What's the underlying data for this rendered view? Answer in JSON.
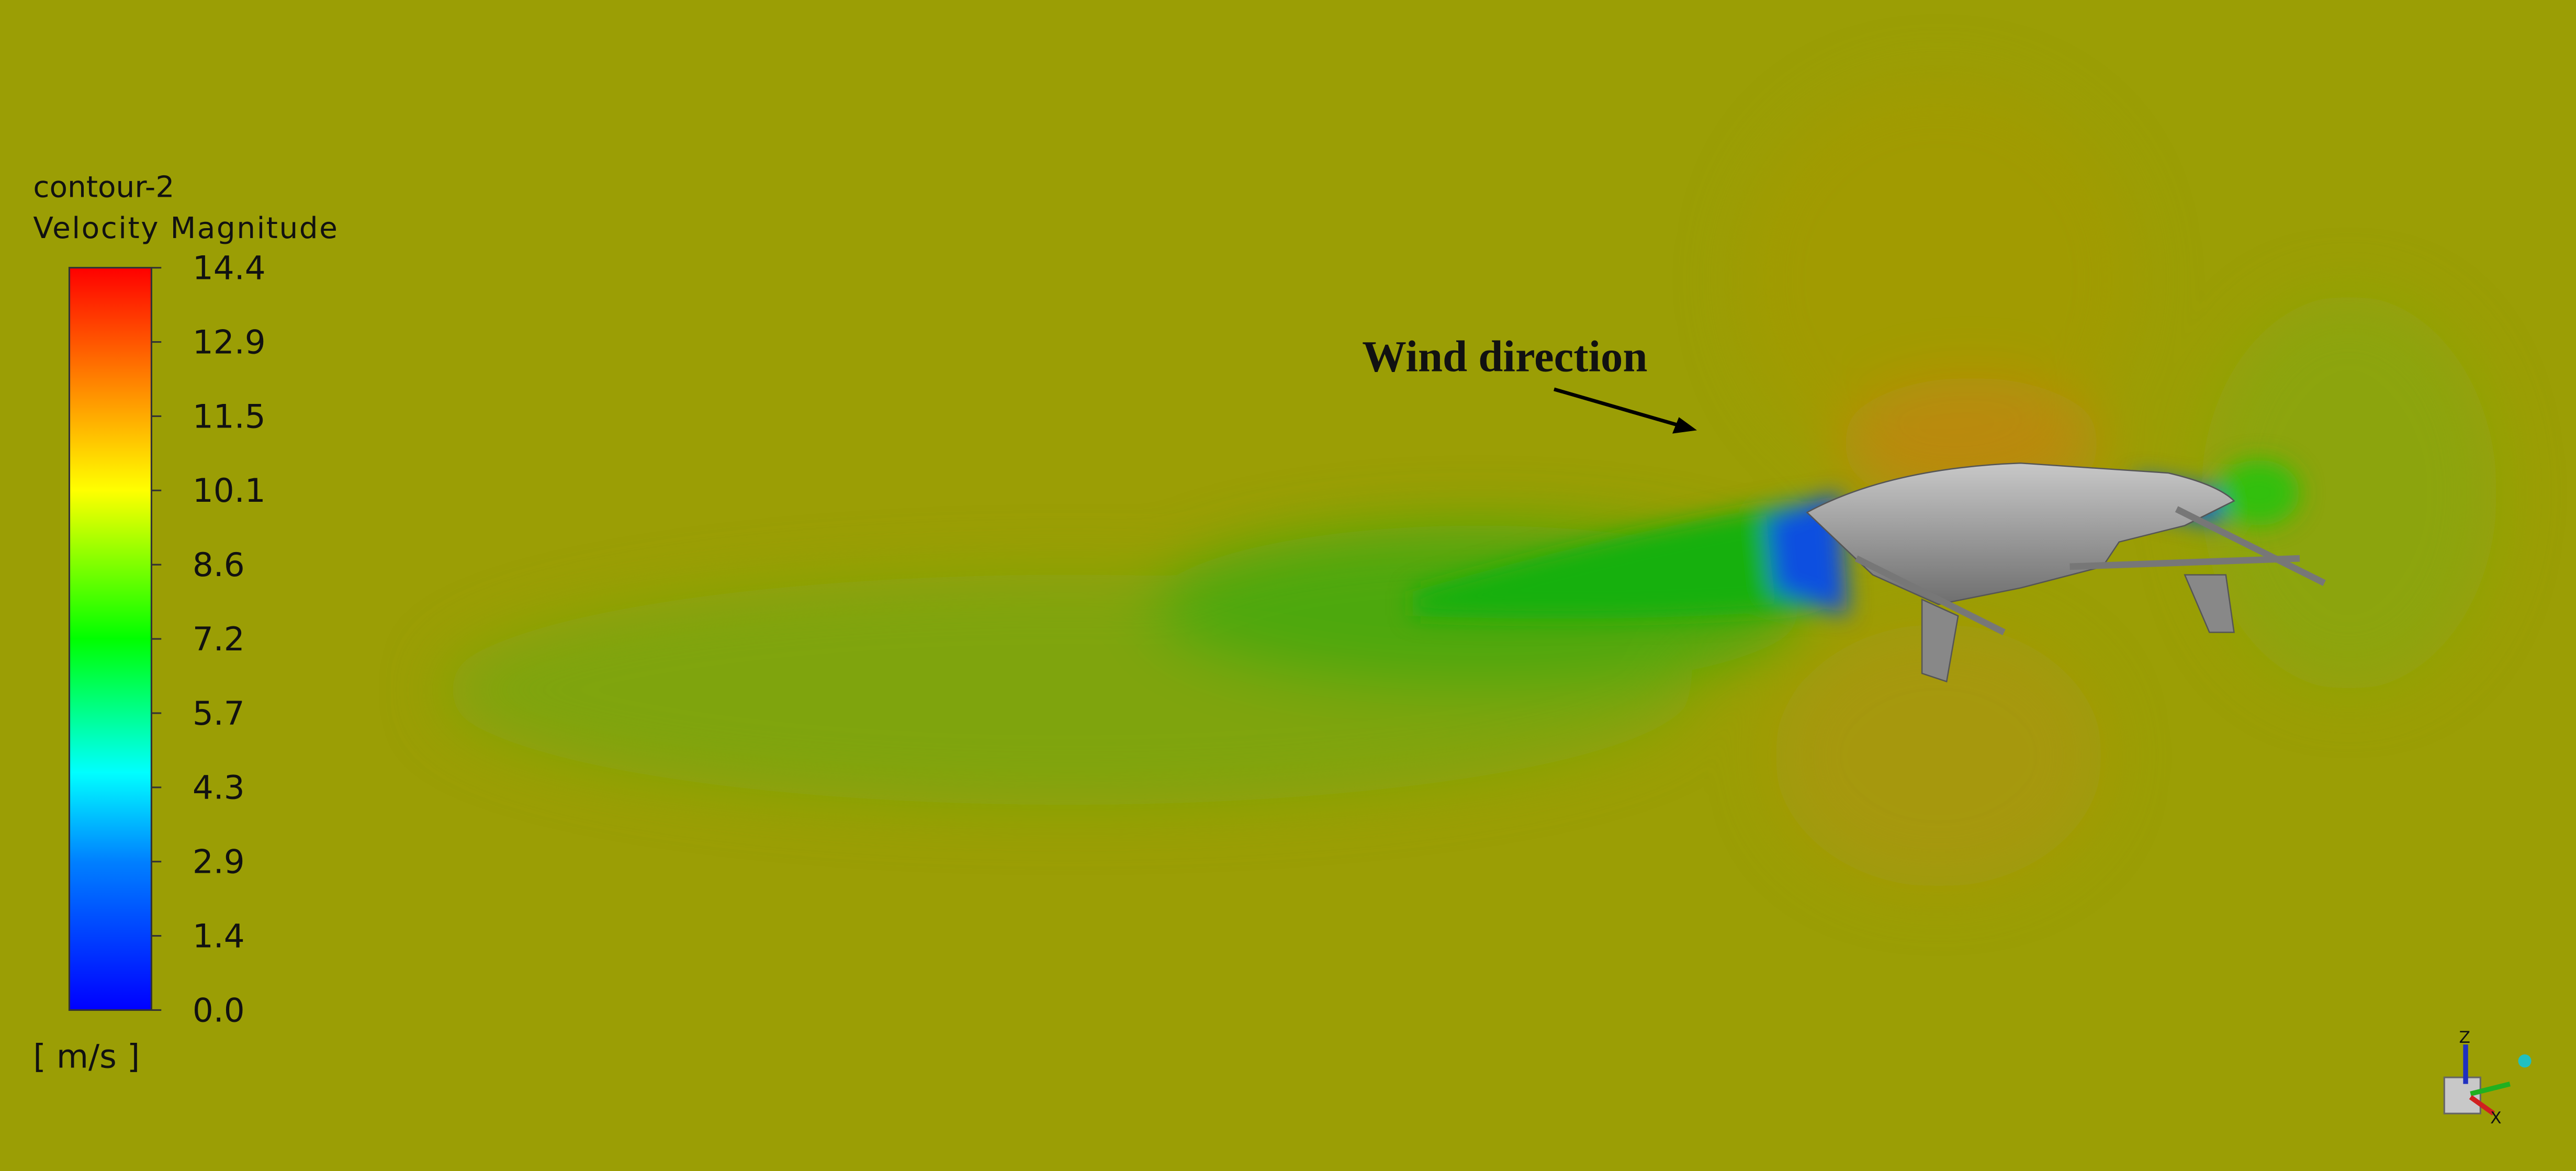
{
  "legend": {
    "title": "contour-2",
    "subtitle": "Velocity Magnitude",
    "ticks": [
      "14.4",
      "12.9",
      "11.5",
      "10.1",
      "8.6",
      "7.2",
      "5.7",
      "4.3",
      "2.9",
      "1.4",
      "0.0"
    ],
    "unit": "[ m/s ]"
  },
  "annotation": "Wind direction",
  "triad": {
    "z": "Z",
    "x": "X"
  }
}
